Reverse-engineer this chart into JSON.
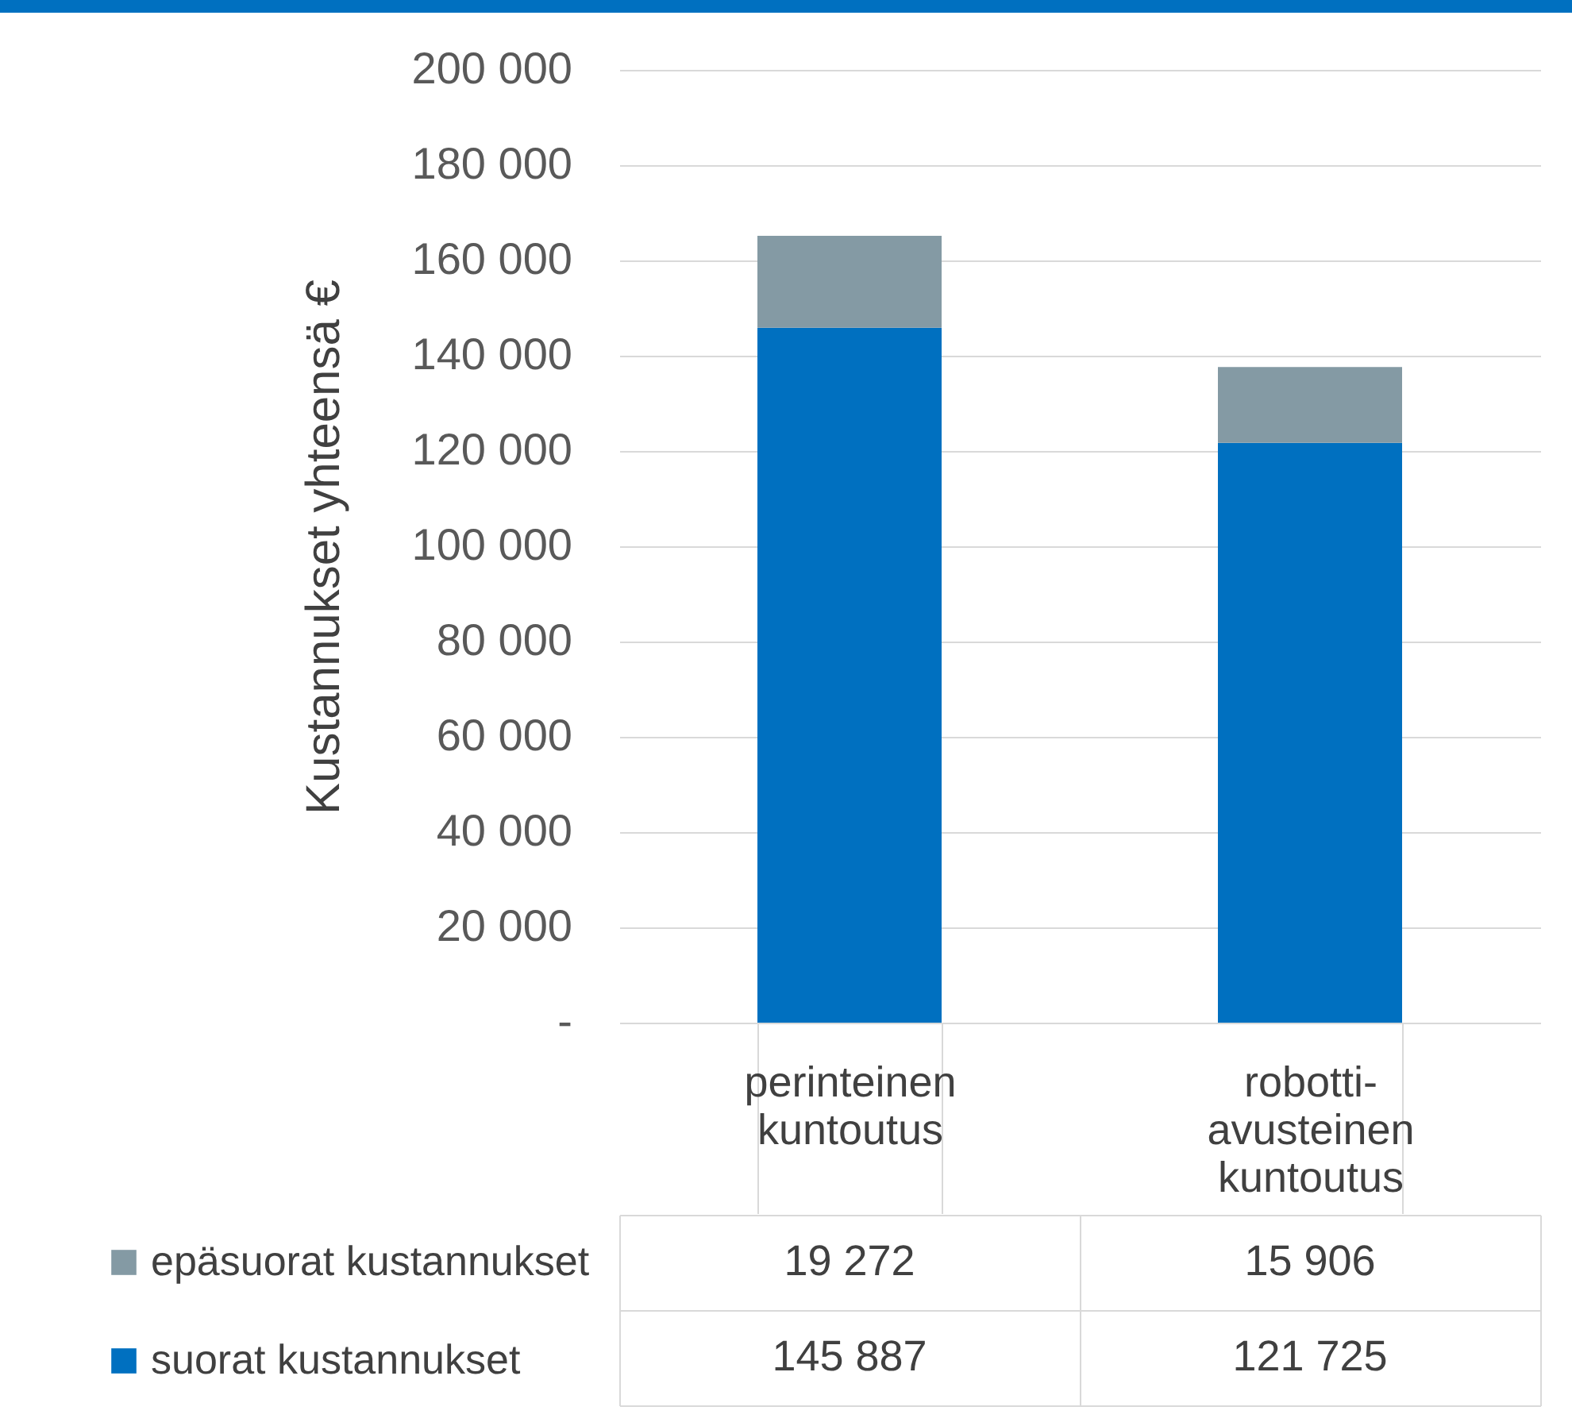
{
  "chart_data": {
    "type": "bar",
    "stacked": true,
    "ylabel": "Kustannukset yhteensä €",
    "categories": [
      "perinteinen kuntoutus",
      "robotti-avusteinen kuntoutus"
    ],
    "series": [
      {
        "name": "suorat kustannukset",
        "color": "#0070c0",
        "values": [
          145887,
          121725
        ]
      },
      {
        "name": "epäsuorat kustannukset",
        "color": "#849aa4",
        "values": [
          19272,
          15906
        ]
      }
    ],
    "ylim": [
      0,
      200000
    ],
    "yticks": [
      {
        "value": 0,
        "label": "-"
      },
      20000,
      40000,
      60000,
      80000,
      100000,
      120000,
      140000,
      160000,
      180000,
      200000
    ],
    "grid": "y",
    "legend": "bottom left",
    "data_labels": true
  }
}
